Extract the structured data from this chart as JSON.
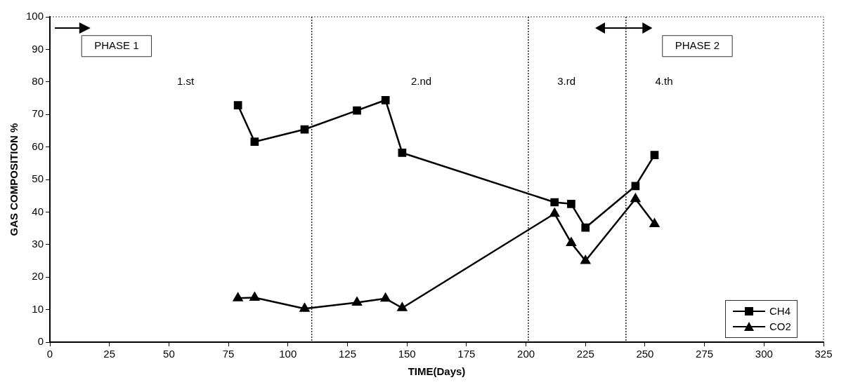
{
  "chart_data": {
    "type": "line",
    "xlabel": "TIME(Days)",
    "ylabel": "GAS COMPOSITION %",
    "x": [
      79,
      86,
      107,
      129,
      141,
      148,
      212,
      219,
      225,
      246,
      254
    ],
    "series": [
      {
        "name": "CH4",
        "color": "#000000",
        "marker": "square",
        "values": [
          72.8,
          61.6,
          65.4,
          71.2,
          74.4,
          58.2,
          43,
          42.5,
          35.2,
          48,
          57.5
        ]
      },
      {
        "name": "CO2",
        "color": "#000000",
        "marker": "triangle",
        "values": [
          13.5,
          13.7,
          10.3,
          12.2,
          13.4,
          10.5,
          39.5,
          30.5,
          25,
          44,
          36.3
        ]
      }
    ],
    "xlim": [
      0,
      325
    ],
    "xticks": [
      0,
      25,
      50,
      75,
      100,
      125,
      150,
      175,
      200,
      225,
      250,
      275,
      300,
      325
    ],
    "ylim": [
      0,
      100
    ],
    "yticks": [
      0,
      10,
      20,
      30,
      40,
      50,
      60,
      70,
      80,
      90,
      100
    ],
    "grid": false,
    "legend": "bottom right",
    "line_style": "solid",
    "ref_lines": [
      {
        "axis": "x",
        "value": 110,
        "line_style": "dotted"
      },
      {
        "axis": "x",
        "value": 201,
        "line_style": "dotted"
      },
      {
        "axis": "x",
        "value": 242,
        "line_style": "dotted"
      }
    ],
    "annotations": [
      "PHASE 1",
      "1.st",
      "2.nd",
      "3.rd",
      "4.th",
      "PHASE 2"
    ]
  }
}
